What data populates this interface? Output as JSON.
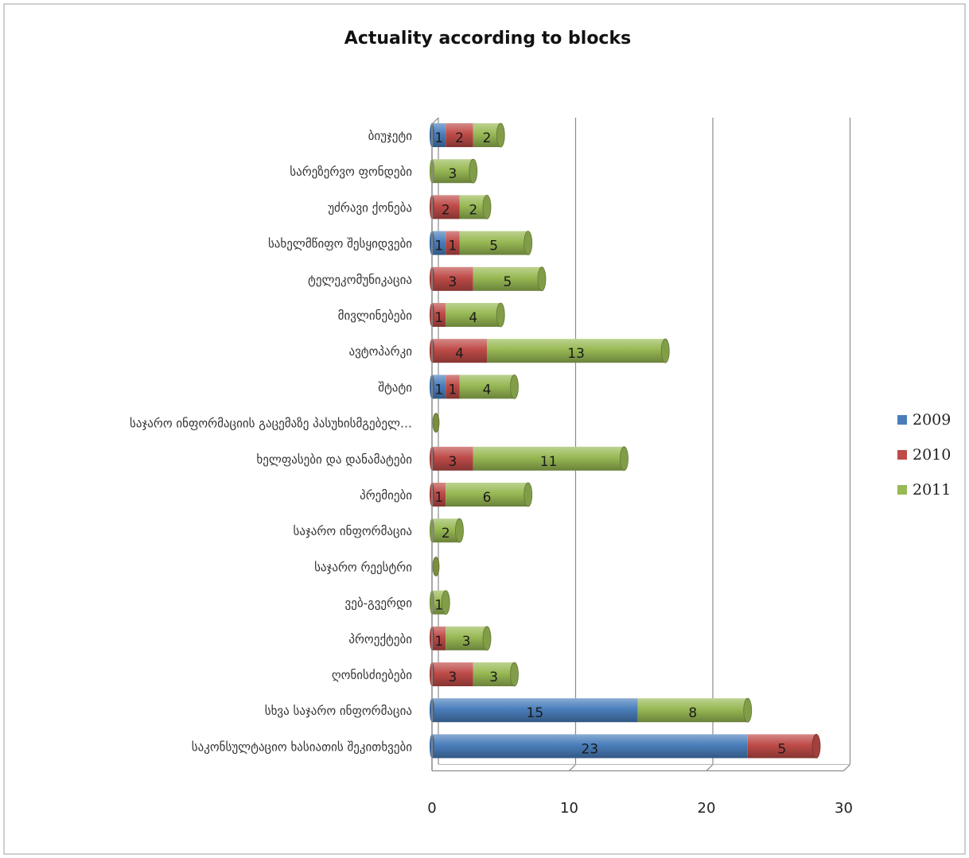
{
  "chart_data": {
    "type": "bar",
    "orientation": "horizontal",
    "stacked": true,
    "title": "Actuality according to blocks",
    "xlim": [
      0,
      30
    ],
    "x_ticks": [
      0,
      10,
      20,
      30
    ],
    "grid": true,
    "legend_position": "right",
    "categories": [
      "ბიუჯეტი",
      "სარეზერვო ფონდები",
      "უძრავი ქონება",
      "სახელმწიფო შესყიდვები",
      "ტელეკომუნიკაცია",
      "მივლინებები",
      "ავტოპარკი",
      "შტატი",
      "საჯარო ინფორმაციის გაცემაზე პასუხისმგებელ…",
      "ხელფასები და დანამატები",
      "პრემიები",
      "საჯარო ინფორმაცია",
      "საჯარო რეესტრი",
      "ვებ-გვერდი",
      "პროექტები",
      "ღონისძიებები",
      "სხვა საჯარო ინფორმაცია",
      "საკონსულტაციო ხასიათის შეკითხვები"
    ],
    "series": [
      {
        "name": "2009",
        "color": "#4a7ebb",
        "values": [
          1,
          0,
          0,
          1,
          0,
          0,
          0,
          1,
          0,
          0,
          0,
          0,
          0,
          0,
          0,
          0,
          15,
          23
        ]
      },
      {
        "name": "2010",
        "color": "#be4b48",
        "values": [
          2,
          0,
          2,
          1,
          3,
          1,
          4,
          1,
          0,
          3,
          1,
          0,
          0,
          0,
          1,
          3,
          0,
          5
        ]
      },
      {
        "name": "2011",
        "color": "#98b954",
        "values": [
          2,
          3,
          2,
          5,
          5,
          4,
          13,
          4,
          0,
          11,
          6,
          2,
          0,
          1,
          3,
          3,
          8,
          0
        ]
      }
    ]
  }
}
